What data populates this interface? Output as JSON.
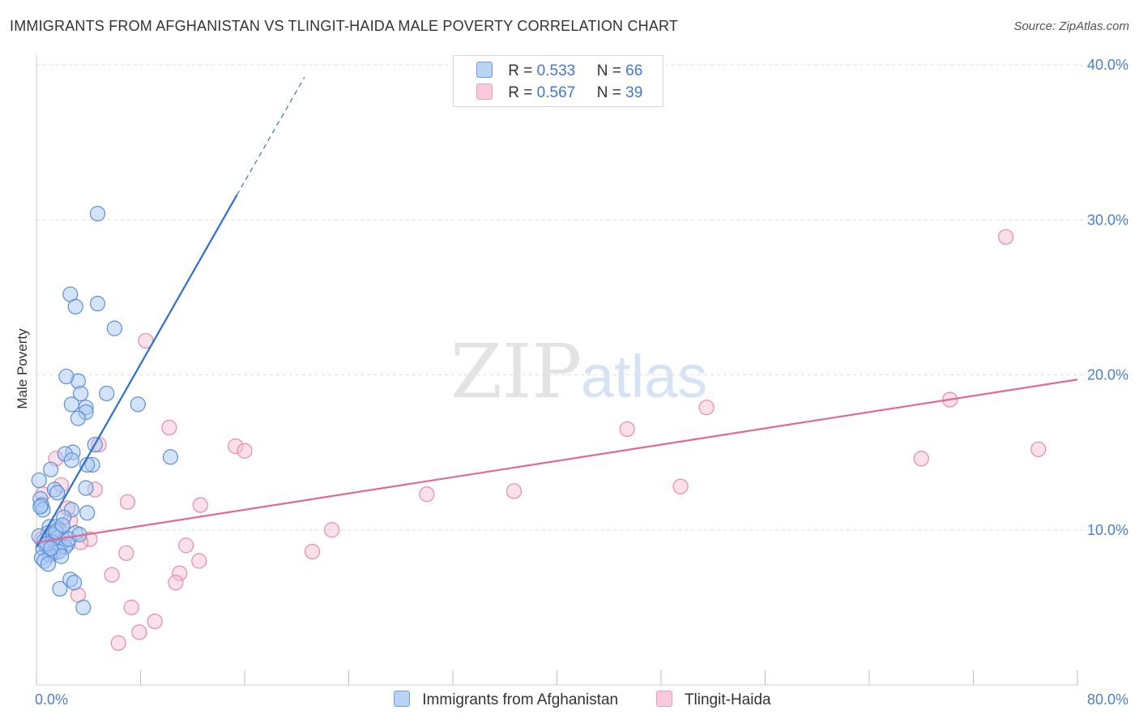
{
  "title": "IMMIGRANTS FROM AFGHANISTAN VS TLINGIT-HAIDA MALE POVERTY CORRELATION CHART",
  "source": "Source: ZipAtlas.com",
  "watermark": {
    "part1": "ZIP",
    "part2": "atlas"
  },
  "legend": {
    "rows": [
      {
        "r_label": "R =",
        "r_value": "0.533",
        "n_label": "N =",
        "n_value": "66"
      },
      {
        "r_label": "R =",
        "r_value": "0.567",
        "n_label": "N =",
        "n_value": "39"
      }
    ]
  },
  "bottom_legend": [
    "Immigrants from Afghanistan",
    "Tlingit-Haida"
  ],
  "colors": {
    "blue_fill": "#a9c8f2",
    "blue_stroke": "#5b8fd8",
    "blue_line": "#2f6fcf",
    "pink_fill": "#f6c1d2",
    "pink_stroke": "#e58aa8",
    "pink_line": "#e06a93",
    "tick_text": "#4a7fd0"
  },
  "chart_data": {
    "type": "scatter",
    "title": "IMMIGRANTS FROM AFGHANISTAN VS TLINGIT-HAIDA MALE POVERTY CORRELATION CHART",
    "xlabel": "",
    "ylabel": "Male Poverty",
    "xlim": [
      0,
      80
    ],
    "ylim": [
      0,
      40
    ],
    "x_tick_labels": [
      "0.0%",
      "80.0%"
    ],
    "y_ticks": [
      10,
      20,
      30,
      40
    ],
    "y_tick_labels": [
      "10.0%",
      "20.0%",
      "30.0%",
      "40.0%"
    ],
    "grid": true,
    "legend_position": "top-center",
    "series": [
      {
        "name": "Immigrants from Afghanistan",
        "R": 0.533,
        "N": 66,
        "trend": {
          "x0": 0,
          "y0": 8.9,
          "x1": 15.4,
          "y1": 31.6,
          "dash_to_x": 20.6,
          "dash_to_y": 39.2
        },
        "points": [
          [
            4.7,
            30.4
          ],
          [
            2.6,
            25.2
          ],
          [
            3.0,
            24.4
          ],
          [
            4.7,
            24.6
          ],
          [
            6.0,
            23.0
          ],
          [
            3.2,
            19.6
          ],
          [
            2.3,
            19.9
          ],
          [
            3.4,
            18.8
          ],
          [
            5.4,
            18.8
          ],
          [
            3.8,
            17.9
          ],
          [
            2.7,
            18.1
          ],
          [
            7.8,
            18.1
          ],
          [
            3.8,
            17.6
          ],
          [
            3.2,
            17.2
          ],
          [
            4.5,
            15.5
          ],
          [
            2.8,
            15.0
          ],
          [
            2.2,
            14.9
          ],
          [
            2.7,
            14.5
          ],
          [
            4.3,
            14.2
          ],
          [
            3.9,
            14.2
          ],
          [
            10.3,
            14.7
          ],
          [
            1.1,
            13.9
          ],
          [
            0.2,
            13.2
          ],
          [
            3.8,
            12.7
          ],
          [
            1.4,
            12.6
          ],
          [
            0.3,
            12.0
          ],
          [
            0.4,
            11.6
          ],
          [
            0.5,
            11.3
          ],
          [
            2.7,
            11.3
          ],
          [
            3.9,
            11.1
          ],
          [
            2.1,
            10.8
          ],
          [
            1.0,
            10.2
          ],
          [
            1.5,
            10.2
          ],
          [
            1.7,
            10.0
          ],
          [
            0.9,
            9.8
          ],
          [
            1.3,
            9.7
          ],
          [
            3.0,
            9.8
          ],
          [
            1.6,
            9.5
          ],
          [
            2.1,
            9.3
          ],
          [
            0.6,
            9.3
          ],
          [
            2.4,
            9.1
          ],
          [
            1.2,
            9.2
          ],
          [
            0.7,
            9.0
          ],
          [
            1.8,
            8.9
          ],
          [
            2.2,
            8.9
          ],
          [
            0.5,
            8.8
          ],
          [
            1.3,
            8.5
          ],
          [
            1.7,
            8.6
          ],
          [
            1.0,
            8.4
          ],
          [
            1.9,
            8.3
          ],
          [
            0.4,
            8.2
          ],
          [
            0.6,
            8.0
          ],
          [
            0.9,
            7.8
          ],
          [
            2.6,
            6.8
          ],
          [
            2.9,
            6.6
          ],
          [
            1.8,
            6.2
          ],
          [
            3.6,
            5.0
          ],
          [
            0.2,
            9.6
          ],
          [
            1.5,
            9.9
          ],
          [
            2.5,
            9.4
          ],
          [
            0.8,
            9.1
          ],
          [
            1.1,
            8.8
          ],
          [
            3.3,
            9.7
          ],
          [
            2.0,
            10.3
          ],
          [
            0.3,
            11.5
          ],
          [
            1.6,
            12.4
          ]
        ]
      },
      {
        "name": "Tlingit-Haida",
        "R": 0.567,
        "N": 39,
        "trend": {
          "x0": 0,
          "y0": 9.2,
          "x1": 80,
          "y1": 19.7
        },
        "points": [
          [
            74.5,
            28.9
          ],
          [
            8.4,
            22.2
          ],
          [
            70.2,
            18.4
          ],
          [
            51.5,
            17.9
          ],
          [
            10.2,
            16.6
          ],
          [
            45.4,
            16.5
          ],
          [
            15.3,
            15.4
          ],
          [
            4.8,
            15.5
          ],
          [
            16.0,
            15.1
          ],
          [
            77.0,
            15.2
          ],
          [
            68.0,
            14.6
          ],
          [
            1.5,
            14.6
          ],
          [
            1.9,
            12.9
          ],
          [
            4.5,
            12.6
          ],
          [
            30.0,
            12.3
          ],
          [
            36.7,
            12.5
          ],
          [
            49.5,
            12.8
          ],
          [
            7.0,
            11.8
          ],
          [
            12.6,
            11.6
          ],
          [
            2.4,
            11.4
          ],
          [
            2.6,
            10.6
          ],
          [
            22.7,
            10.0
          ],
          [
            0.4,
            9.4
          ],
          [
            4.1,
            9.4
          ],
          [
            3.4,
            9.2
          ],
          [
            11.5,
            9.0
          ],
          [
            6.9,
            8.5
          ],
          [
            21.2,
            8.6
          ],
          [
            12.5,
            8.0
          ],
          [
            5.8,
            7.1
          ],
          [
            11.0,
            7.2
          ],
          [
            10.7,
            6.6
          ],
          [
            3.2,
            5.8
          ],
          [
            7.3,
            5.0
          ],
          [
            9.1,
            4.1
          ],
          [
            7.9,
            3.4
          ],
          [
            6.3,
            2.7
          ],
          [
            0.5,
            12.3
          ],
          [
            1.0,
            9.0
          ]
        ]
      }
    ]
  }
}
